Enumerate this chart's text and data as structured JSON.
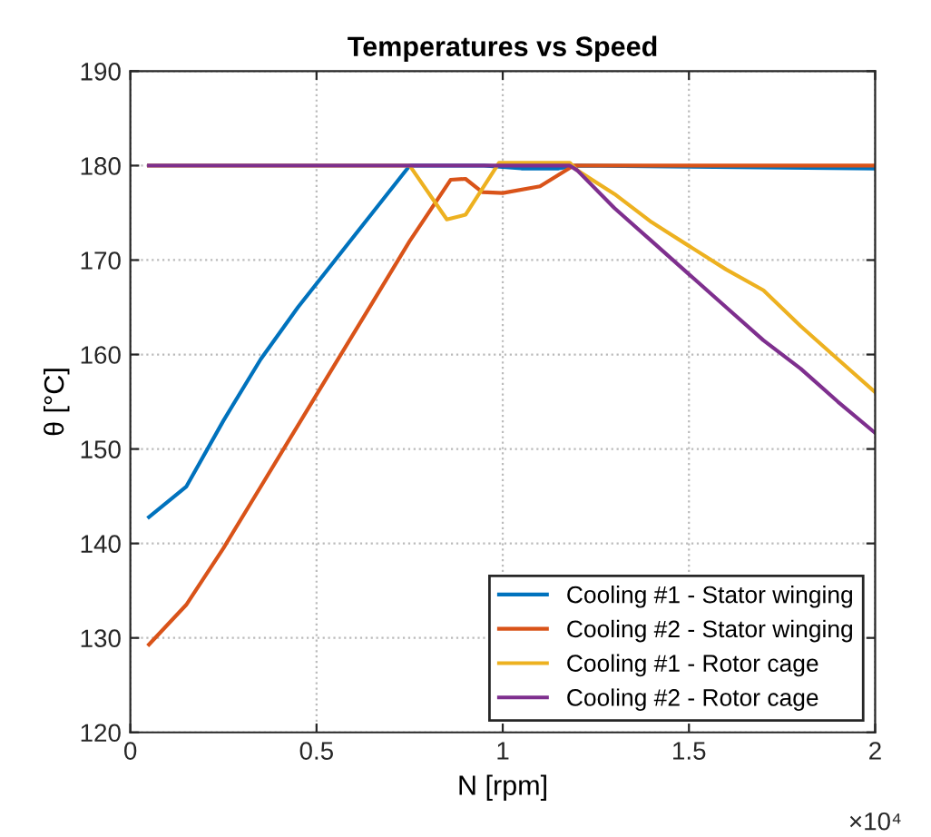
{
  "chart_data": {
    "type": "line",
    "title": "Temperatures vs Speed",
    "xlabel": "N [rpm]",
    "ylabel": "θ [°C]",
    "annotations": [
      "×10⁴"
    ],
    "xlim": [
      0,
      2
    ],
    "xticks": [
      0,
      0.5,
      1,
      1.5,
      2
    ],
    "ylim": [
      120,
      190
    ],
    "yticks": [
      120,
      130,
      140,
      150,
      160,
      170,
      180,
      190
    ],
    "grid": true,
    "legend": "bottom right",
    "marker": "none",
    "line_style": "solid",
    "series": [
      {
        "name": "Cooling #1 - Stator winging",
        "color": "#0072bd",
        "x": [
          0.05,
          0.15,
          0.25,
          0.35,
          0.45,
          0.55,
          0.65,
          0.75,
          0.85,
          0.95,
          1.05,
          1.15,
          1.2,
          2
        ],
        "values": [
          142.8,
          146,
          153,
          159.5,
          165,
          170,
          175,
          180,
          180,
          180,
          179.7,
          179.7,
          180,
          179.7
        ]
      },
      {
        "name": "Cooling #2 - Stator winging",
        "color": "#d95319",
        "x": [
          0.05,
          0.15,
          0.25,
          0.35,
          0.45,
          0.55,
          0.65,
          0.75,
          0.86,
          0.9,
          0.945,
          1,
          1.1,
          1.19,
          1.6,
          2
        ],
        "values": [
          129.3,
          133.5,
          139.5,
          146,
          152.5,
          159,
          165.5,
          172,
          178.5,
          178.6,
          177.2,
          177.1,
          177.8,
          180,
          180,
          180
        ]
      },
      {
        "name": "Cooling #1 - Rotor cage",
        "color": "#edb120",
        "x": [
          0.05,
          0.75,
          0.85,
          0.9,
          0.99,
          1.18,
          1.2,
          1.3,
          1.4,
          1.5,
          1.6,
          1.7,
          1.8,
          1.9,
          2
        ],
        "values": [
          180,
          180,
          174.3,
          174.8,
          180.3,
          180.3,
          179.5,
          177,
          174,
          171.5,
          169,
          166.8,
          163,
          159.5,
          156
        ]
      },
      {
        "name": "Cooling #2 - Rotor cage",
        "color": "#7e2f8e",
        "x": [
          0.05,
          1.18,
          1.2,
          1.3,
          1.4,
          1.5,
          1.6,
          1.7,
          1.8,
          1.9,
          2
        ],
        "values": [
          180,
          180,
          179.5,
          175.5,
          172,
          168.5,
          165,
          161.5,
          158.5,
          155,
          151.7
        ]
      }
    ]
  }
}
